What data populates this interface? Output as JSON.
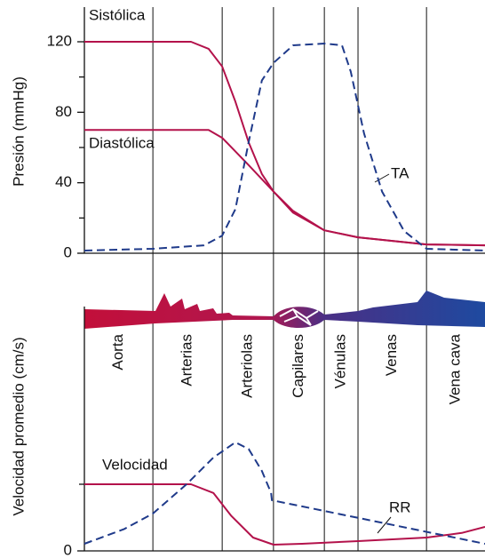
{
  "chart_data": [
    {
      "type": "line",
      "y_label": "Presión (mmHg)",
      "xlim": [
        0,
        100
      ],
      "ylim": [
        0,
        120
      ],
      "yticks": [
        0,
        40,
        80,
        120
      ],
      "yminor_ticks": [
        20,
        60,
        100
      ],
      "series": [
        {
          "name": "Sistólica",
          "color": "#b3124b",
          "dash": false,
          "x": [
            0,
            26.6,
            31,
            34.4,
            37.7,
            41,
            44.3,
            47.2,
            52.1,
            59.9,
            68.3,
            85.4,
            100
          ],
          "values": [
            120,
            120,
            116,
            106,
            86,
            63,
            45,
            35,
            23,
            13,
            9,
            5,
            4.5
          ]
        },
        {
          "name": "Diastólica",
          "color": "#b3124b",
          "dash": false,
          "x": [
            0,
            31,
            34.4,
            41,
            47.2,
            52.1,
            59.9,
            68.3,
            85.4,
            100
          ],
          "values": [
            70,
            70,
            65.5,
            50,
            35,
            24,
            13,
            9,
            5,
            4.5
          ]
        },
        {
          "name": "TA",
          "color": "#1f3a8a",
          "dash": true,
          "x": [
            0,
            17.1,
            29.9,
            34.4,
            37.7,
            41,
            44.3,
            47.2,
            52.1,
            59.9,
            64.3,
            66.5,
            69.8,
            74.3,
            79.8,
            85.4,
            100
          ],
          "values": [
            1.5,
            2.5,
            4.5,
            10,
            25,
            63,
            98,
            108,
            118,
            119,
            118,
            103,
            68,
            35,
            12.6,
            2.5,
            1.5
          ]
        }
      ]
    },
    {
      "type": "line",
      "y_label": "Velocidad promedio (cm/s)",
      "xlim": [
        0,
        100
      ],
      "ylim": [
        0,
        3.6
      ],
      "yticks": [
        0
      ],
      "yminor_ticks": [
        1
      ],
      "categories": [
        "Aorta",
        "Arterias",
        "Arteriolas",
        "Capilares",
        "Vénulas",
        "Venas",
        "Vena cava"
      ],
      "category_bounds": [
        0,
        17.1,
        34.4,
        47.2,
        59.9,
        68.3,
        85.4,
        100
      ],
      "series": [
        {
          "name": "Velocidad",
          "color": "#b3124b",
          "dash": false,
          "x": [
            0,
            26.6,
            32.2,
            36.6,
            42.1,
            47.2,
            54.3,
            68.3,
            85.4,
            94.2,
            100
          ],
          "values": [
            1,
            1,
            0.87,
            0.53,
            0.2,
            0.093,
            0.107,
            0.147,
            0.2,
            0.27,
            0.36
          ]
        },
        {
          "name": "RR",
          "color": "#1f3a8a",
          "dash": true,
          "x": [
            0,
            10,
            17.1,
            25.5,
            32.2,
            37.7,
            41,
            44.3,
            46.6,
            46.8,
            100
          ],
          "values": [
            0.107,
            0.33,
            0.56,
            1.0,
            1.4,
            1.63,
            1.53,
            1.2,
            0.87,
            0.76,
            0.107
          ]
        }
      ]
    }
  ]
}
